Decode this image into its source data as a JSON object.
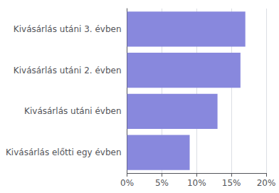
{
  "chart_data": {
    "type": "bar",
    "orientation": "horizontal",
    "categories": [
      "Kivásárlás előtti egy évben",
      "Kivásárlás utáni évben",
      "Kivásárlás utáni 2. évben",
      "Kivásárlás utáni 3. évben"
    ],
    "values": [
      0.09,
      0.13,
      0.163,
      0.17
    ],
    "color": "#8888dd",
    "xlim": [
      0,
      0.2
    ],
    "xticks": [
      {
        "value": 0.0,
        "label": "0%"
      },
      {
        "value": 0.05,
        "label": "5%"
      },
      {
        "value": 0.1,
        "label": "10%"
      },
      {
        "value": 0.15,
        "label": "15%"
      },
      {
        "value": 0.2,
        "label": "20%"
      }
    ],
    "grid": true
  }
}
